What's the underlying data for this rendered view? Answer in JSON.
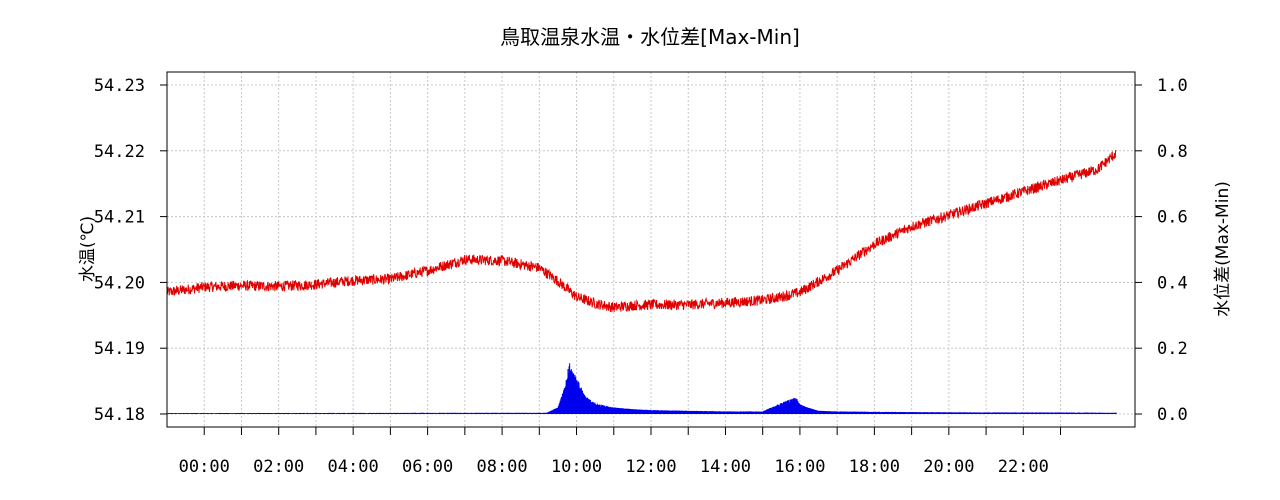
{
  "chart_data": {
    "type": "line",
    "title": "鳥取温泉水温・水位差[Max-Min]",
    "ylabel_left": "水温(℃)",
    "ylabel_right": "水位差(Max-Min)",
    "xlim_hours": [
      -1,
      25
    ],
    "ylim_left": [
      54.18,
      54.23
    ],
    "ylim_right": [
      0.0,
      1.0
    ],
    "x_ticks_hours": [
      0,
      1,
      2,
      3,
      4,
      5,
      6,
      7,
      8,
      9,
      10,
      11,
      12,
      13,
      14,
      15,
      16,
      17,
      18,
      19,
      20,
      21,
      22,
      23
    ],
    "x_tick_labels": [
      "00:00",
      "02:00",
      "04:00",
      "06:00",
      "08:00",
      "10:00",
      "12:00",
      "14:00",
      "16:00",
      "18:00",
      "20:00",
      "22:00"
    ],
    "x_tick_label_hours": [
      0,
      2,
      4,
      6,
      8,
      10,
      12,
      14,
      16,
      18,
      20,
      22
    ],
    "y_ticks_left": [
      54.18,
      54.19,
      54.2,
      54.21,
      54.22,
      54.23
    ],
    "y_tick_labels_left": [
      "54.18",
      "54.19",
      "54.20",
      "54.21",
      "54.22",
      "54.23"
    ],
    "y_ticks_right": [
      0.0,
      0.2,
      0.4,
      0.6,
      0.8,
      1.0
    ],
    "y_tick_labels_right": [
      "0.0",
      "0.2",
      "0.4",
      "0.6",
      "0.8",
      "1.0"
    ],
    "grid": true,
    "series": [
      {
        "axis": "left",
        "color": "#e00000",
        "x_hours": [
          -1.0,
          0.0,
          1.0,
          2.0,
          3.0,
          4.0,
          5.0,
          6.0,
          7.0,
          8.0,
          9.0,
          9.5,
          10.0,
          10.5,
          11.0,
          11.5,
          12.0,
          13.0,
          14.0,
          15.0,
          15.5,
          16.0,
          17.0,
          18.0,
          19.0,
          20.0,
          21.0,
          22.0,
          23.0,
          24.0,
          24.5
        ],
        "values": [
          54.1985,
          54.1993,
          54.1995,
          54.1994,
          54.1997,
          54.2003,
          54.2005,
          54.2018,
          54.2035,
          54.2033,
          54.2022,
          54.2002,
          54.1978,
          54.1968,
          54.1962,
          54.1965,
          54.1966,
          54.1966,
          54.1969,
          54.1973,
          54.1978,
          54.1985,
          54.2018,
          54.2058,
          54.2085,
          54.2102,
          54.212,
          54.2138,
          54.2155,
          54.2172,
          54.2197
        ]
      },
      {
        "axis": "right",
        "color": "#0000ee",
        "x_hours": [
          -1.0,
          9.2,
          9.5,
          9.7,
          9.8,
          9.9,
          10.0,
          10.1,
          10.2,
          10.4,
          10.6,
          10.8,
          11.0,
          11.5,
          12.0,
          13.0,
          14.0,
          15.0,
          15.6,
          15.9,
          16.0,
          16.2,
          16.5,
          17.0,
          19.0,
          21.0,
          23.0,
          24.5
        ],
        "values": [
          0.003,
          0.004,
          0.02,
          0.09,
          0.16,
          0.13,
          0.11,
          0.09,
          0.06,
          0.04,
          0.03,
          0.025,
          0.02,
          0.015,
          0.012,
          0.01,
          0.008,
          0.008,
          0.04,
          0.05,
          0.03,
          0.02,
          0.01,
          0.008,
          0.006,
          0.005,
          0.005,
          0.004
        ]
      }
    ]
  }
}
